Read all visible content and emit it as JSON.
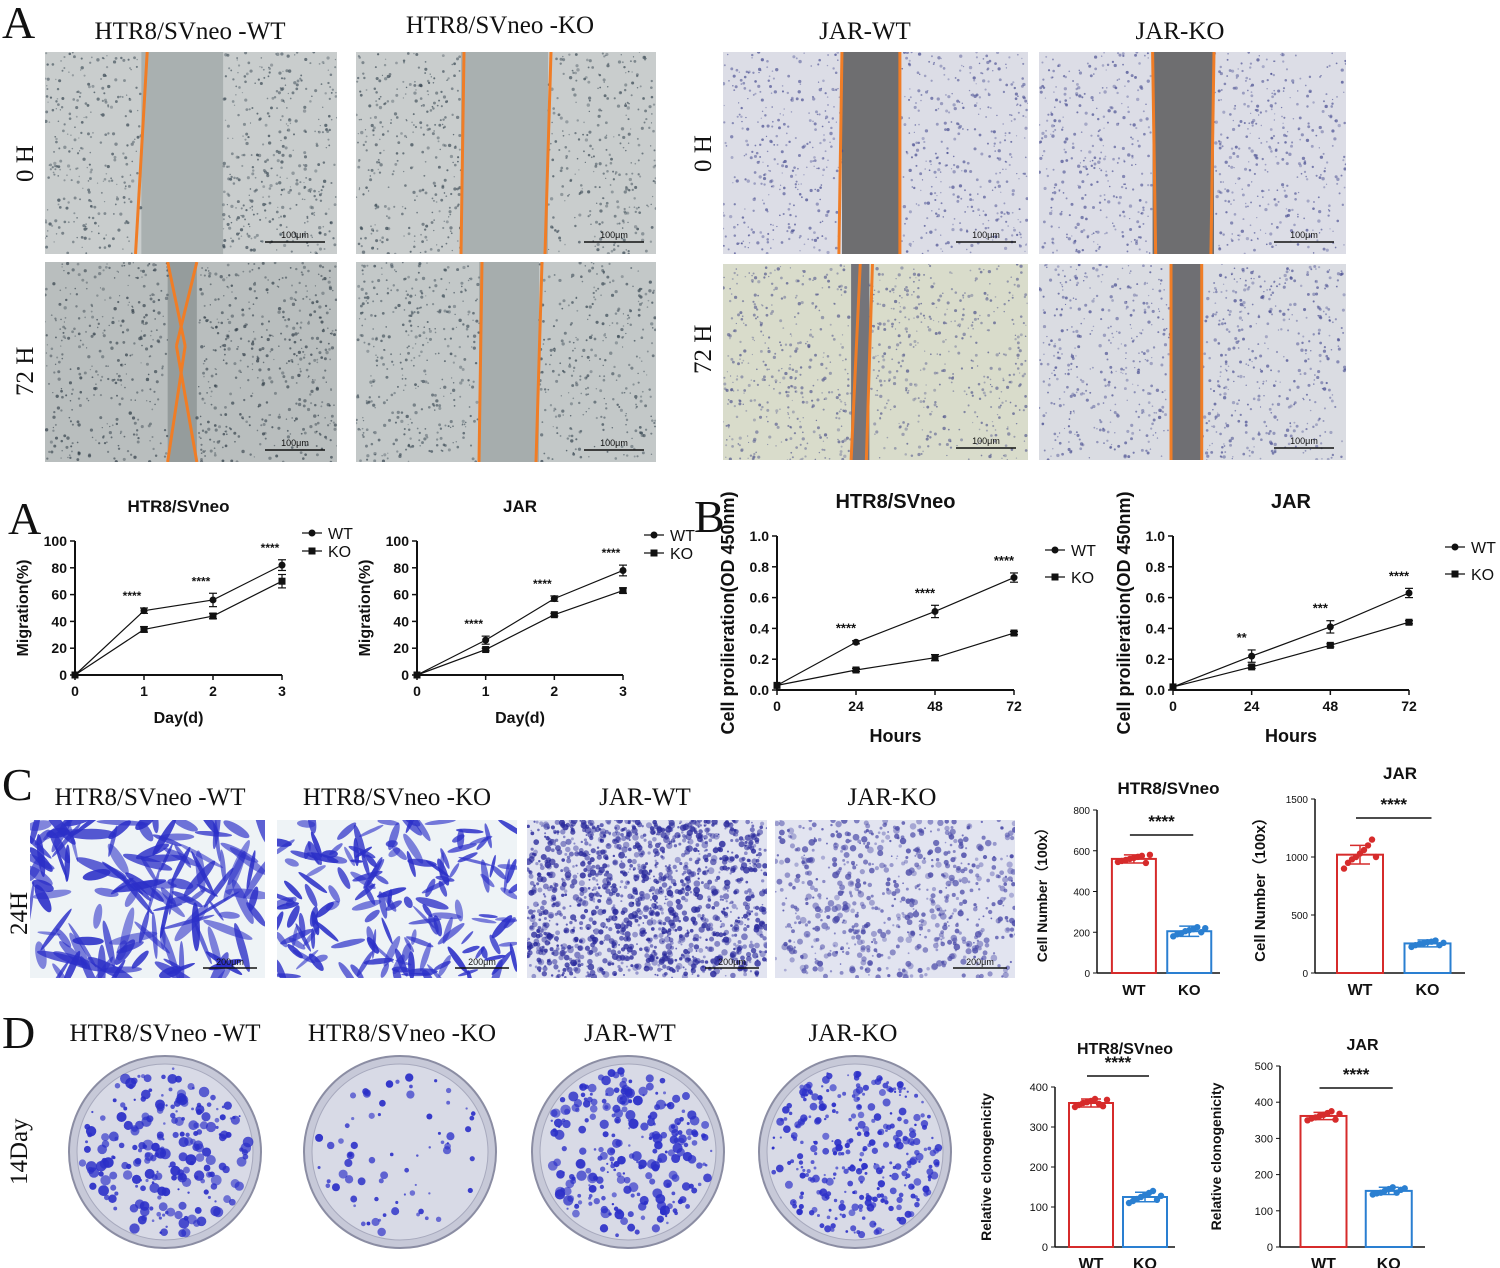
{
  "panel_letters": {
    "a_top": "A",
    "a_bottom": "A",
    "b": "B",
    "c": "C",
    "d": "D"
  },
  "wound_titles": [
    "HTR8/SVneo -WT",
    "HTR8/SVneo -KO",
    "JAR-WT",
    "JAR-KO"
  ],
  "wound_rows": [
    "0 H",
    "72 H"
  ],
  "wound_scale": "100μm",
  "transwell_titles": [
    "HTR8/SVneo -WT",
    "HTR8/SVneo -KO",
    "JAR-WT",
    "JAR-KO"
  ],
  "transwell_row": "24H",
  "transwell_scale": "200μm",
  "colony_titles": [
    "HTR8/SVneo -WT",
    "HTR8/SVneo -KO",
    "JAR-WT",
    "JAR-KO"
  ],
  "colony_row": "14Day",
  "colors": {
    "wt": "#d62b2b",
    "ko": "#2a7fd1",
    "line": "#111111",
    "scratch": "#f07d26",
    "stain": "#2b2fc8"
  },
  "chart_data": [
    {
      "id": "migration-htr8",
      "type": "line",
      "title": "HTR8/SVneo",
      "xlabel": "Day(d)",
      "ylabel": "Migration(%)",
      "x": [
        0,
        1,
        2,
        3
      ],
      "xticks": [
        "0",
        "1",
        "2",
        "3"
      ],
      "ylim": [
        0,
        100
      ],
      "yticks": [
        "0",
        "20",
        "40",
        "60",
        "80",
        "100"
      ],
      "series": [
        {
          "name": "WT",
          "values": [
            0,
            48,
            56,
            82
          ],
          "errors": [
            0,
            2,
            5,
            4
          ]
        },
        {
          "name": "KO",
          "values": [
            0,
            34,
            44,
            70
          ],
          "errors": [
            0,
            2,
            2,
            5
          ]
        }
      ],
      "significance": [
        "****",
        "****",
        "****"
      ],
      "legend": "top-right"
    },
    {
      "id": "migration-jar",
      "type": "line",
      "title": "JAR",
      "xlabel": "Day(d)",
      "ylabel": "Migration(%)",
      "x": [
        0,
        1,
        2,
        3
      ],
      "xticks": [
        "0",
        "1",
        "2",
        "3"
      ],
      "ylim": [
        0,
        100
      ],
      "yticks": [
        "0",
        "20",
        "40",
        "60",
        "80",
        "100"
      ],
      "series": [
        {
          "name": "WT",
          "values": [
            0,
            26,
            57,
            78
          ],
          "errors": [
            0,
            3,
            2,
            4
          ]
        },
        {
          "name": "KO",
          "values": [
            0,
            19,
            45,
            63
          ],
          "errors": [
            0,
            1,
            1,
            2
          ]
        }
      ],
      "significance": [
        "****",
        "****",
        "****"
      ],
      "legend": "top-right"
    },
    {
      "id": "proliferation-htr8",
      "type": "line",
      "title": "HTR8/SVneo",
      "xlabel": "Hours",
      "ylabel": "Cell proilieration(OD 450nm)",
      "x": [
        0,
        24,
        48,
        72
      ],
      "xticks": [
        "0",
        "24",
        "48",
        "72"
      ],
      "ylim": [
        0,
        1.0
      ],
      "yticks": [
        "0.0",
        "0.2",
        "0.4",
        "0.6",
        "0.8",
        "1.0"
      ],
      "series": [
        {
          "name": "WT",
          "values": [
            0.03,
            0.31,
            0.51,
            0.73
          ],
          "errors": [
            0,
            0.01,
            0.04,
            0.03
          ]
        },
        {
          "name": "KO",
          "values": [
            0.03,
            0.13,
            0.21,
            0.37
          ],
          "errors": [
            0,
            0.01,
            0.02,
            0.01
          ]
        }
      ],
      "significance": [
        "****",
        "****",
        "****"
      ],
      "legend": "right"
    },
    {
      "id": "proliferation-jar",
      "type": "line",
      "title": "JAR",
      "xlabel": "Hours",
      "ylabel": "Cell proilieration(OD 450nm)",
      "x": [
        0,
        24,
        48,
        72
      ],
      "xticks": [
        "0",
        "24",
        "48",
        "72"
      ],
      "ylim": [
        0,
        1.0
      ],
      "yticks": [
        "0.0",
        "0.2",
        "0.4",
        "0.6",
        "0.8",
        "1.0"
      ],
      "series": [
        {
          "name": "WT",
          "values": [
            0.02,
            0.22,
            0.41,
            0.63
          ],
          "errors": [
            0,
            0.04,
            0.04,
            0.03
          ]
        },
        {
          "name": "KO",
          "values": [
            0.02,
            0.15,
            0.29,
            0.44
          ],
          "errors": [
            0,
            0.01,
            0.01,
            0.01
          ]
        }
      ],
      "significance": [
        "**",
        "***",
        "****"
      ],
      "legend": "right"
    },
    {
      "id": "transwell-htr8",
      "type": "bar",
      "title": "HTR8/SVneo",
      "ylabel": "Cell Number（100x）",
      "categories": [
        "WT",
        "KO"
      ],
      "values": [
        560,
        205
      ],
      "errors": [
        20,
        25
      ],
      "points": [
        [
          545,
          550,
          555,
          560,
          565,
          570,
          575,
          540,
          580
        ],
        [
          180,
          190,
          195,
          205,
          210,
          215,
          225,
          200,
          220
        ]
      ],
      "ylim": [
        0,
        800
      ],
      "yticks": [
        "0",
        "200",
        "400",
        "600",
        "800"
      ],
      "significance": "****"
    },
    {
      "id": "transwell-jar",
      "type": "bar",
      "title": "JAR",
      "ylabel": "Cell Number（100x）",
      "categories": [
        "WT",
        "KO"
      ],
      "values": [
        1020,
        255
      ],
      "errors": [
        80,
        30
      ],
      "points": [
        [
          900,
          950,
          980,
          1000,
          1030,
          1060,
          1100,
          1150,
          1000
        ],
        [
          225,
          240,
          250,
          255,
          265,
          270,
          280,
          240,
          260
        ]
      ],
      "ylim": [
        0,
        1500
      ],
      "yticks": [
        "0",
        "500",
        "1000",
        "1500"
      ],
      "significance": "****"
    },
    {
      "id": "colony-htr8",
      "type": "bar",
      "title": "HTR8/SVneo",
      "ylabel": "Relative clonogenicity",
      "categories": [
        "WT",
        "KO"
      ],
      "values": [
        360,
        125
      ],
      "errors": [
        10,
        12
      ],
      "points": [
        [
          350,
          355,
          360,
          362,
          365,
          370,
          358,
          352,
          368
        ],
        [
          110,
          115,
          120,
          125,
          130,
          135,
          140,
          118,
          128
        ]
      ],
      "ylim": [
        0,
        400
      ],
      "yticks": [
        "0",
        "100",
        "200",
        "300",
        "400"
      ],
      "significance": "****"
    },
    {
      "id": "colony-jar",
      "type": "bar",
      "title": "JAR",
      "ylabel": "Relative clonogenicity",
      "categories": [
        "WT",
        "KO"
      ],
      "values": [
        362,
        155
      ],
      "errors": [
        10,
        10
      ],
      "points": [
        [
          350,
          355,
          358,
          362,
          365,
          370,
          375,
          352,
          368
        ],
        [
          145,
          148,
          150,
          155,
          160,
          165,
          150,
          158,
          162
        ]
      ],
      "ylim": [
        0,
        500
      ],
      "yticks": [
        "0",
        "100",
        "200",
        "300",
        "400",
        "500"
      ],
      "significance": "****"
    }
  ]
}
